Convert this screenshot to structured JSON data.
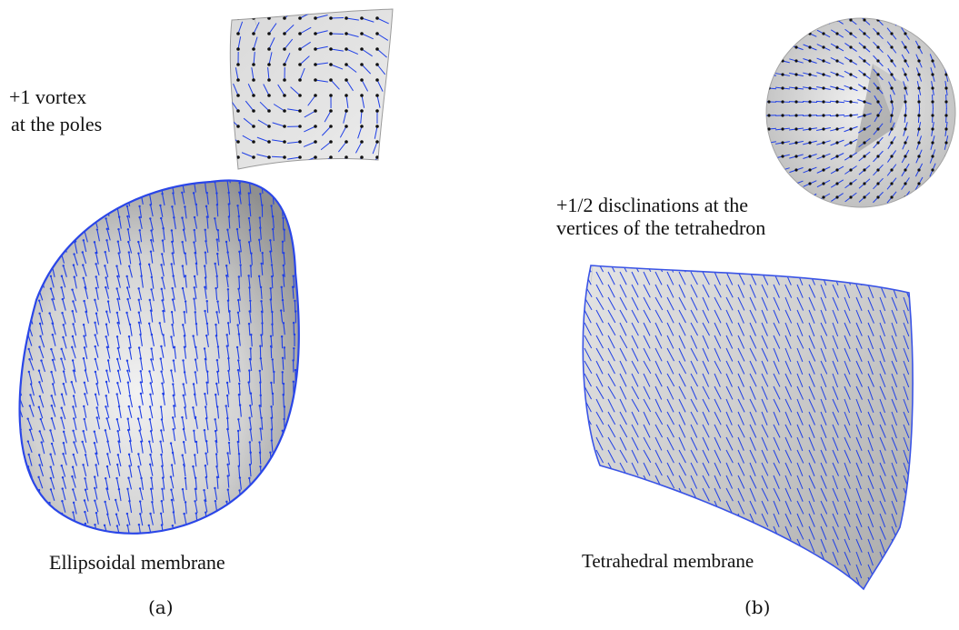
{
  "panel_a": {
    "annotation_line1": "+1 vortex",
    "annotation_line2": "at the poles",
    "caption": "Ellipsoidal  membrane",
    "panel_label": "(a)"
  },
  "panel_b": {
    "annotation_line1": "+1/2 disclinations at the",
    "annotation_line2": "vertices of the tetrahedron",
    "caption": "Tetrahedral  membrane",
    "panel_label": "(b)"
  },
  "colors": {
    "director": "#1f3fe6",
    "membrane_light": "#ededed",
    "membrane_dark": "#9c9c9c",
    "node": "#111111"
  }
}
